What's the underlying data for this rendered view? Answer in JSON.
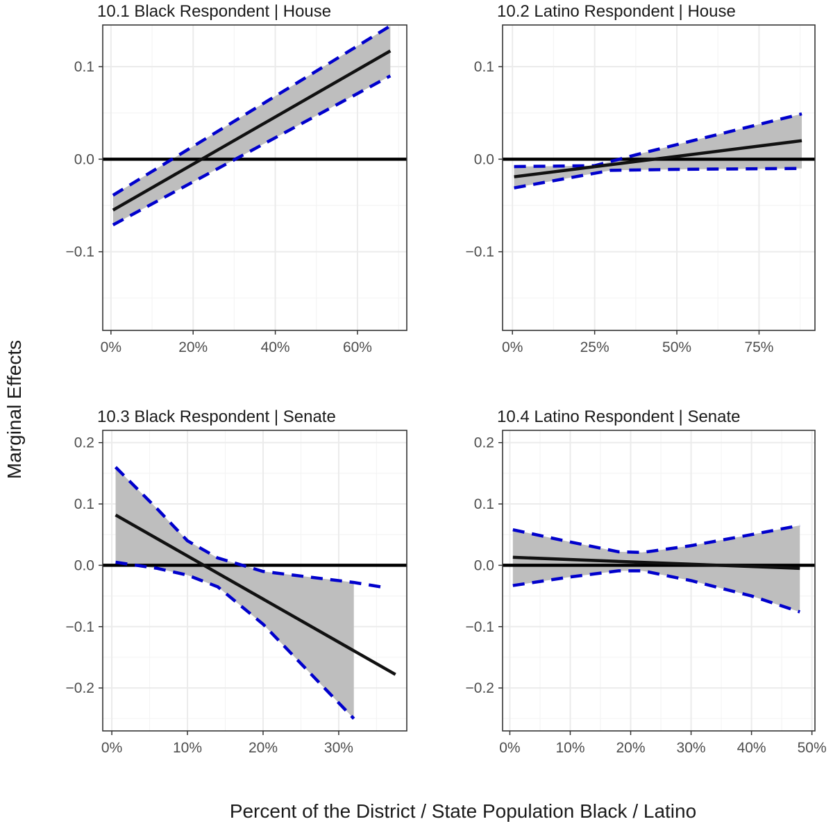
{
  "figure": {
    "ylabel": "Marginal Effects",
    "xlabel": "Percent of the District / State Population Black / Latino"
  },
  "colors": {
    "ci_fill": "#bebebe",
    "ci_dash": "#0000cc",
    "line": "#111111",
    "zero_line": "#000000",
    "grid_major": "#ebebeb",
    "grid_minor": "#f4f4f4",
    "frame": "#333333"
  },
  "chart_data": [
    {
      "type": "line",
      "title": "10.1 Black Respondent | House",
      "x_range": [
        -0.02,
        0.72
      ],
      "y_range": [
        -0.185,
        0.145
      ],
      "x_ticks": [
        0,
        0.2,
        0.4,
        0.6
      ],
      "x_tick_labels": [
        "0%",
        "20%",
        "40%",
        "60%"
      ],
      "y_ticks": [
        -0.1,
        0,
        0.1
      ],
      "y_tick_labels": [
        "−0.1",
        "0.0",
        "0.1"
      ],
      "series": [
        {
          "name": "estimate",
          "x": [
            0.005,
            0.68
          ],
          "y": [
            -0.055,
            0.117
          ]
        },
        {
          "name": "lower_ci",
          "x": [
            0.005,
            0.68
          ],
          "y": [
            -0.071,
            0.09
          ]
        },
        {
          "name": "upper_ci",
          "x": [
            0.005,
            0.68
          ],
          "y": [
            -0.039,
            0.144
          ]
        }
      ]
    },
    {
      "type": "line",
      "title": "10.2 Latino Respondent | House",
      "x_range": [
        -0.03,
        0.92
      ],
      "y_range": [
        -0.185,
        0.145
      ],
      "x_ticks": [
        0,
        0.25,
        0.5,
        0.75
      ],
      "x_tick_labels": [
        "0%",
        "25%",
        "50%",
        "75%"
      ],
      "y_ticks": [
        -0.1,
        0,
        0.1
      ],
      "y_tick_labels": [
        "−0.1",
        "0.0",
        "0.1"
      ],
      "series": [
        {
          "name": "estimate",
          "x": [
            0.005,
            0.88
          ],
          "y": [
            -0.019,
            0.02
          ]
        },
        {
          "name": "lower_ci",
          "x": [
            0.005,
            0.3,
            0.5,
            0.88
          ],
          "y": [
            -0.031,
            -0.012,
            -0.011,
            -0.01
          ]
        },
        {
          "name": "upper_ci",
          "x": [
            0.005,
            0.25,
            0.4,
            0.88
          ],
          "y": [
            -0.008,
            -0.007,
            0.007,
            0.049
          ]
        }
      ]
    },
    {
      "type": "line",
      "title": "10.3 Black Respondent | Senate",
      "x_range": [
        -0.012,
        0.39
      ],
      "y_range": [
        -0.27,
        0.22
      ],
      "x_ticks": [
        0,
        0.1,
        0.2,
        0.3
      ],
      "x_tick_labels": [
        "0%",
        "10%",
        "20%",
        "30%"
      ],
      "y_ticks": [
        -0.2,
        -0.1,
        0,
        0.1,
        0.2
      ],
      "y_tick_labels": [
        "−0.2",
        "−0.1",
        "0.0",
        "0.1",
        "0.2"
      ],
      "series": [
        {
          "name": "estimate",
          "x": [
            0.005,
            0.375
          ],
          "y": [
            0.082,
            -0.178
          ]
        },
        {
          "name": "lower_ci",
          "x": [
            0.005,
            0.06,
            0.1,
            0.14,
            0.2,
            0.32
          ],
          "y": [
            0.005,
            -0.005,
            -0.016,
            -0.035,
            -0.096,
            -0.25
          ]
        },
        {
          "name": "upper_ci",
          "x": [
            0.005,
            0.06,
            0.1,
            0.14,
            0.2,
            0.32,
            0.36
          ],
          "y": [
            0.16,
            0.092,
            0.04,
            0.012,
            -0.01,
            -0.028,
            -0.036
          ]
        }
      ]
    },
    {
      "type": "line",
      "title": "10.4 Latino Respondent | Senate",
      "x_range": [
        -0.012,
        0.505
      ],
      "y_range": [
        -0.27,
        0.22
      ],
      "x_ticks": [
        0,
        0.1,
        0.2,
        0.3,
        0.4,
        0.5
      ],
      "x_tick_labels": [
        "0%",
        "10%",
        "20%",
        "30%",
        "40%",
        "50%"
      ],
      "y_ticks": [
        -0.2,
        -0.1,
        0,
        0.1,
        0.2
      ],
      "y_tick_labels": [
        "−0.2",
        "−0.1",
        "0.0",
        "0.1",
        "0.2"
      ],
      "series": [
        {
          "name": "estimate",
          "x": [
            0.005,
            0.48
          ],
          "y": [
            0.013,
            -0.005
          ]
        },
        {
          "name": "lower_ci",
          "x": [
            0.005,
            0.1,
            0.18,
            0.22,
            0.3,
            0.4,
            0.48
          ],
          "y": [
            -0.033,
            -0.019,
            -0.009,
            -0.009,
            -0.025,
            -0.05,
            -0.076
          ]
        },
        {
          "name": "upper_ci",
          "x": [
            0.005,
            0.1,
            0.18,
            0.22,
            0.3,
            0.4,
            0.48
          ],
          "y": [
            0.058,
            0.038,
            0.022,
            0.021,
            0.032,
            0.05,
            0.065
          ]
        }
      ]
    }
  ]
}
